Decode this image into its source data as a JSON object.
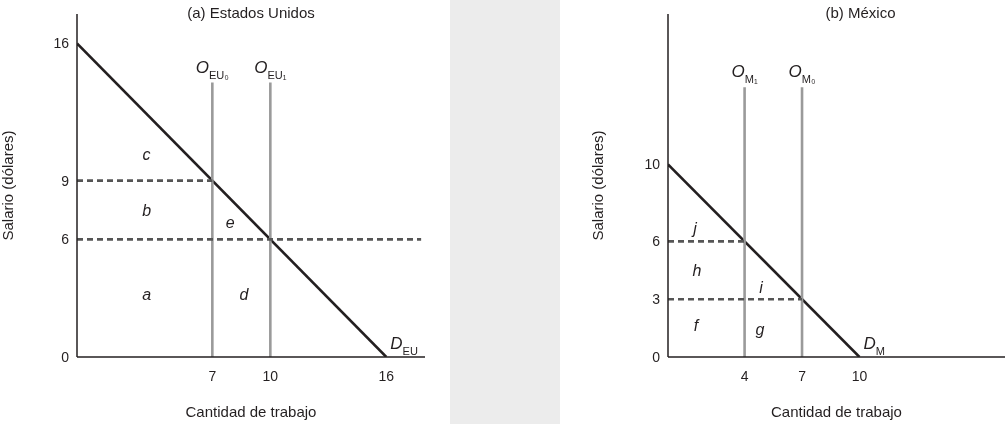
{
  "chart_data": [
    {
      "type": "line",
      "title": "(a) Estados Unidos",
      "xlabel": "Cantidad de trabajo",
      "ylabel": "Salario (dólares)",
      "xlim": [
        0,
        18
      ],
      "ylim": [
        0,
        17.5
      ],
      "xticks": [
        7,
        10,
        16
      ],
      "yticks": [
        0,
        6,
        9,
        16
      ],
      "grid": false,
      "legend": false,
      "marker": "none",
      "series": [
        {
          "name": "D$_{EU}$",
          "color": "#231f20",
          "x": [
            0,
            16
          ],
          "values": [
            16,
            0
          ],
          "line_style": "solid"
        },
        {
          "name": "O$_{EU₀}$",
          "color": "#9a9a9a",
          "x": [
            7,
            7
          ],
          "values": [
            0,
            14
          ],
          "line_style": "solid"
        },
        {
          "name": "O$_{EU₁}$",
          "color": "#9a9a9a",
          "x": [
            10,
            10
          ],
          "values": [
            0,
            14
          ],
          "line_style": "solid"
        },
        {
          "color": "#555555",
          "x": [
            0,
            7
          ],
          "values": [
            9,
            9
          ],
          "line_style": "dashed"
        },
        {
          "color": "#555555",
          "x": [
            0,
            17.8
          ],
          "values": [
            6,
            6
          ],
          "line_style": "dashed"
        }
      ],
      "annotations": [
        "c",
        "b",
        "e",
        "a",
        "d"
      ]
    },
    {
      "type": "line",
      "title": "(b) México",
      "xlabel": "Cantidad de trabajo",
      "ylabel": "Salario (dólares)",
      "xlim": [
        0,
        17.6
      ],
      "ylim": [
        0,
        17.8
      ],
      "xticks": [
        4,
        7,
        10
      ],
      "yticks": [
        0,
        3,
        6,
        10
      ],
      "grid": false,
      "legend": false,
      "marker": "none",
      "series": [
        {
          "name": "D$_{M}$",
          "color": "#231f20",
          "x": [
            0,
            10
          ],
          "values": [
            10,
            0
          ],
          "line_style": "solid"
        },
        {
          "name": "O$_{M₁}$",
          "color": "#9a9a9a",
          "x": [
            4,
            4
          ],
          "values": [
            0,
            14
          ],
          "line_style": "solid"
        },
        {
          "name": "O$_{M₀}$",
          "color": "#9a9a9a",
          "x": [
            7,
            7
          ],
          "values": [
            0,
            14
          ],
          "line_style": "solid"
        },
        {
          "color": "#555555",
          "x": [
            0,
            4
          ],
          "values": [
            6,
            6
          ],
          "line_style": "dashed"
        },
        {
          "color": "#555555",
          "x": [
            0,
            7
          ],
          "values": [
            3,
            3
          ],
          "line_style": "dashed"
        }
      ],
      "annotations": [
        "j",
        "h",
        "i",
        "f",
        "g"
      ]
    }
  ]
}
